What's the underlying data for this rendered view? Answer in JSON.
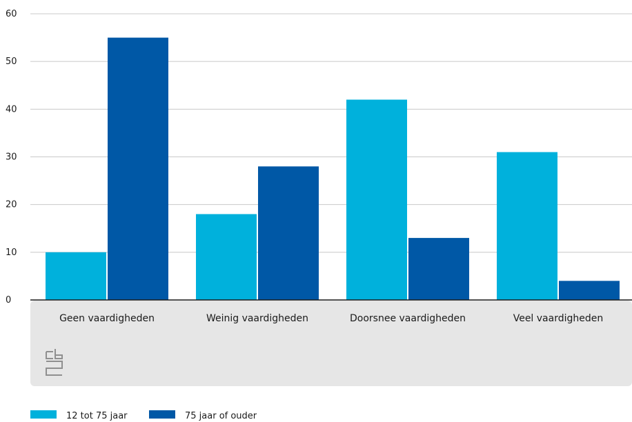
{
  "colors": {
    "series1": "#00b1dc",
    "series2": "#0058a6",
    "band": "#e6e6e6",
    "grid": "#c8c8c8",
    "logo": "#8f8f8f"
  },
  "logo": {
    "icon": "cbs-logo-icon",
    "text": "cbs"
  },
  "chart_data": {
    "type": "bar",
    "categories": [
      "Geen vaardigheden",
      "Weinig vaardigheden",
      "Doorsnee vaardigheden",
      "Veel vaardigheden"
    ],
    "series": [
      {
        "name": "12 tot 75 jaar",
        "values": [
          10,
          18,
          42,
          31
        ]
      },
      {
        "name": "75 jaar of ouder",
        "values": [
          55,
          28,
          13,
          4
        ]
      }
    ],
    "yticks": [
      0,
      10,
      20,
      30,
      40,
      50,
      60
    ],
    "ylim": [
      0,
      60
    ],
    "grid": true,
    "legend": "bottom-left"
  }
}
